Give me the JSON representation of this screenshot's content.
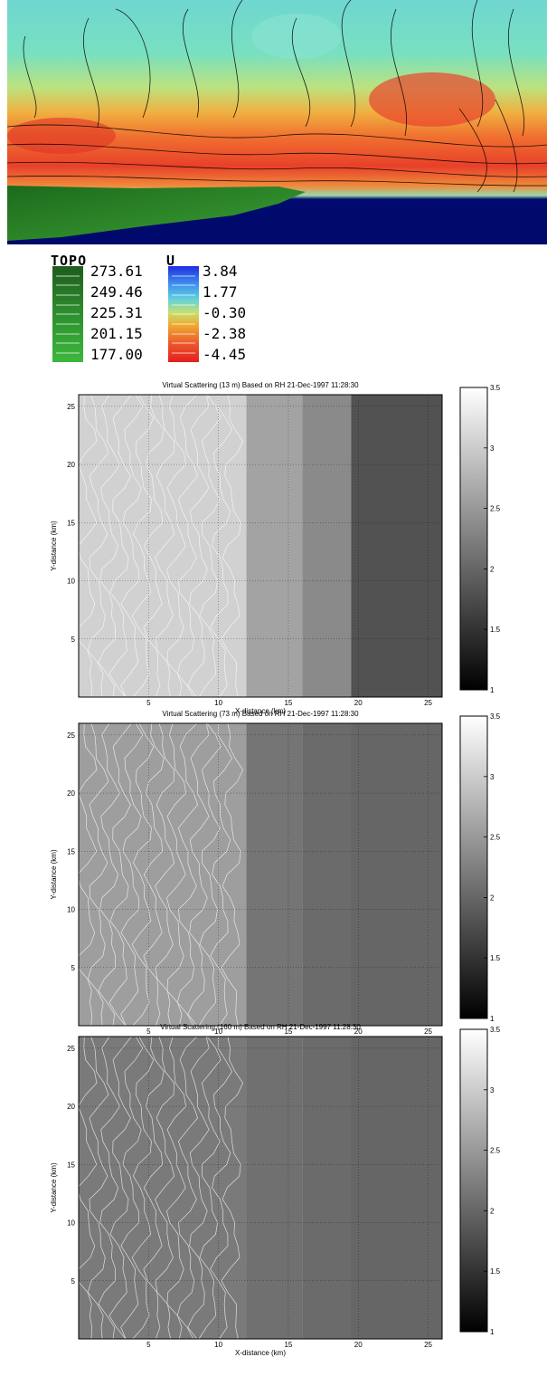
{
  "legend": {
    "topo": {
      "title": "TOPO",
      "values": [
        "273.61",
        "249.46",
        "225.31",
        "201.15",
        "177.00"
      ]
    },
    "u": {
      "title": "U",
      "values": [
        "3.84",
        "1.77",
        "-0.30",
        "-2.38",
        "-4.45"
      ]
    }
  },
  "chart_data": [
    {
      "type": "heatmap",
      "title": "Virtual Scattering (13 m) Based on RH 21-Dec-1997 11:28:30",
      "xlabel": "X-distance (km)",
      "ylabel": "Y-distance (km)",
      "xlim": [
        0,
        26
      ],
      "ylim": [
        0,
        26
      ],
      "xticks": [
        5,
        10,
        15,
        20,
        25
      ],
      "yticks": [
        5,
        10,
        15,
        20,
        25
      ],
      "grid": true,
      "colorbar": {
        "range": [
          1,
          3.5
        ],
        "ticks": [
          "1",
          "1.5",
          "2",
          "2.5",
          "3",
          "3.5"
        ],
        "colormap": "gray"
      },
      "bands": [
        {
          "x": [
            0,
            12
          ],
          "value": 3.05
        },
        {
          "x": [
            12,
            16
          ],
          "value": 2.6
        },
        {
          "x": [
            16,
            19.5
          ],
          "value": 2.35
        },
        {
          "x": [
            19.5,
            26
          ],
          "value": 1.8
        }
      ]
    },
    {
      "type": "heatmap",
      "title": "Virtual Scattering (73 m) Based on RH 21-Dec-1997 11:28:30",
      "xlabel": "X-distance (km)",
      "ylabel": "Y-distance (km)",
      "xlim": [
        0,
        26
      ],
      "ylim": [
        0,
        26
      ],
      "xticks": [
        5,
        10,
        15,
        20,
        25
      ],
      "yticks": [
        5,
        10,
        15,
        20,
        25
      ],
      "grid": true,
      "colorbar": {
        "range": [
          1,
          3.5
        ],
        "ticks": [
          "1",
          "1.5",
          "2",
          "2.5",
          "3",
          "3.5"
        ],
        "colormap": "gray"
      },
      "bands": [
        {
          "x": [
            0,
            12
          ],
          "value": 2.55
        },
        {
          "x": [
            12,
            16
          ],
          "value": 2.15
        },
        {
          "x": [
            16,
            19.5
          ],
          "value": 2.05
        },
        {
          "x": [
            19.5,
            26
          ],
          "value": 2.0
        }
      ]
    },
    {
      "type": "heatmap",
      "title": "Virtual Scattering (160 m) Based on RH 21-Dec-1997 11:28:30",
      "xlabel": "X-distance (km)",
      "ylabel": "Y-distance (km)",
      "xlim": [
        0,
        26
      ],
      "ylim": [
        0,
        26
      ],
      "xticks": [
        5,
        10,
        15,
        20,
        25
      ],
      "yticks": [
        5,
        10,
        15,
        20,
        25
      ],
      "grid": true,
      "colorbar": {
        "range": [
          1,
          3.5
        ],
        "ticks": [
          "1",
          "1.5",
          "2",
          "2.5",
          "3",
          "3.5"
        ],
        "colormap": "gray"
      },
      "bands": [
        {
          "x": [
            0,
            12
          ],
          "value": 2.2
        },
        {
          "x": [
            12,
            16
          ],
          "value": 2.1
        },
        {
          "x": [
            16,
            19.5
          ],
          "value": 2.05
        },
        {
          "x": [
            19.5,
            26
          ],
          "value": 2.0
        }
      ]
    }
  ]
}
